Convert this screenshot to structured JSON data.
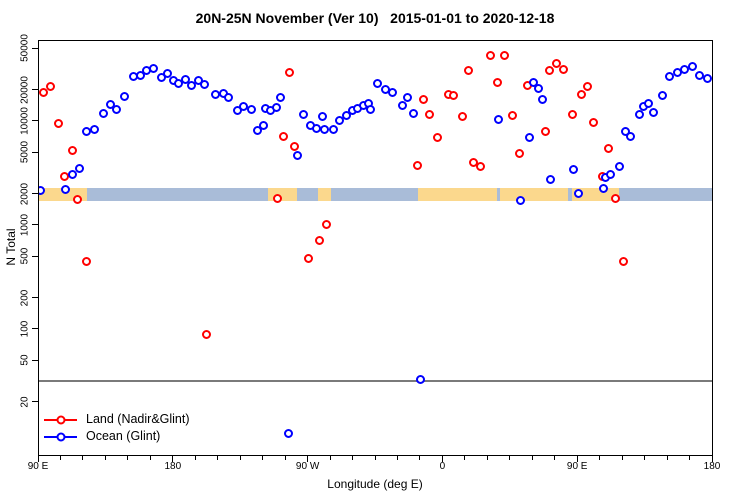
{
  "title": "20N-25N November (Ver 10)   2015-01-01 to 2020-12-18",
  "chart_data": {
    "type": "scatter",
    "title": "20N-25N November (Ver 10)   2015-01-01 to 2020-12-18",
    "xlabel": "Longitude (deg E)",
    "ylabel": "N Total",
    "x_axis": {
      "domain_deg": [
        90,
        540
      ],
      "tick_deg": [
        90,
        180,
        270,
        360,
        450,
        540
      ],
      "tick_labels": [
        "90 E",
        "180",
        "90 W",
        "0",
        "90 E",
        "180"
      ],
      "minor_tick_step_deg": 15
    },
    "y_axis": {
      "scale": "log",
      "ticks": [
        "20",
        "50",
        "100",
        "200",
        "500",
        "1000",
        "2000",
        "5000",
        "10000",
        "20000",
        "50000"
      ],
      "top_tick_value": 50000,
      "legend_position": "bottom-left",
      "grid": false
    },
    "reference_line": {
      "n": 32,
      "color": "#7a7a7a"
    },
    "map_band": {
      "meaning": "land/ocean strip for 20N-25N latitude zone",
      "n_range": [
        1750,
        2300
      ],
      "ocean_color": "#a9bcd8",
      "land_color": "#fbd88d",
      "land_segments_deg": [
        [
          90,
          122
        ],
        [
          243,
          262
        ],
        [
          276,
          285
        ],
        [
          343,
          396
        ],
        [
          398,
          443
        ],
        [
          446,
          477
        ]
      ]
    },
    "series": [
      {
        "id": "land",
        "name": "Land (Nadir&Glint)",
        "color": "#ff0000",
        "points": [
          [
            93.3,
            19300
          ],
          [
            98,
            22000
          ],
          [
            102.7,
            9700
          ],
          [
            106.7,
            3000
          ],
          [
            112.7,
            5300
          ],
          [
            116,
            1810
          ],
          [
            122,
            450
          ],
          [
            202,
            90
          ],
          [
            249.3,
            1850
          ],
          [
            253.3,
            7300
          ],
          [
            257.3,
            30000
          ],
          [
            260.7,
            5800
          ],
          [
            270,
            490
          ],
          [
            277.3,
            730
          ],
          [
            282,
            1040
          ],
          [
            342.7,
            3800
          ],
          [
            346.7,
            16500
          ],
          [
            350.7,
            11900
          ],
          [
            356,
            7100
          ],
          [
            363.3,
            18500
          ],
          [
            366.7,
            18100
          ],
          [
            372.7,
            11300
          ],
          [
            376.7,
            31400
          ],
          [
            380,
            4100
          ],
          [
            384.7,
            3700
          ],
          [
            391.3,
            43800
          ],
          [
            396,
            24100
          ],
          [
            400.7,
            43800
          ],
          [
            406,
            11600
          ],
          [
            410.7,
            5000
          ],
          [
            416,
            22500
          ],
          [
            428,
            8100
          ],
          [
            430.7,
            31400
          ],
          [
            435.3,
            36700
          ],
          [
            440,
            32100
          ],
          [
            446,
            11900
          ],
          [
            452,
            18500
          ],
          [
            456,
            22000
          ],
          [
            460,
            9900
          ],
          [
            466,
            3000
          ],
          [
            470,
            5500
          ],
          [
            474.7,
            1850
          ],
          [
            480,
            450
          ]
        ]
      },
      {
        "id": "ocean",
        "name": "Ocean (Glint)",
        "color": "#0000ff",
        "points": [
          [
            90.7,
            2200
          ],
          [
            108,
            2250
          ],
          [
            112.7,
            3100
          ],
          [
            117.3,
            3600
          ],
          [
            122,
            8100
          ],
          [
            127.3,
            8500
          ],
          [
            133.3,
            12100
          ],
          [
            138,
            14800
          ],
          [
            142,
            13200
          ],
          [
            147.3,
            17700
          ],
          [
            153.3,
            27500
          ],
          [
            158,
            28100
          ],
          [
            162,
            31400
          ],
          [
            166.7,
            32800
          ],
          [
            172,
            26900
          ],
          [
            176,
            29400
          ],
          [
            180,
            25200
          ],
          [
            183.3,
            23500
          ],
          [
            188,
            25700
          ],
          [
            192,
            22500
          ],
          [
            196.7,
            25200
          ],
          [
            200.7,
            23000
          ],
          [
            208,
            18500
          ],
          [
            213.3,
            18900
          ],
          [
            216.7,
            17300
          ],
          [
            222.7,
            13000
          ],
          [
            226.7,
            14200
          ],
          [
            232,
            13200
          ],
          [
            236,
            8300
          ],
          [
            240,
            9300
          ],
          [
            241.3,
            13500
          ],
          [
            244.7,
            13000
          ],
          [
            248.7,
            13800
          ],
          [
            251.3,
            17300
          ],
          [
            256.7,
            10
          ],
          [
            262.7,
            4800
          ],
          [
            266.7,
            11900
          ],
          [
            271.3,
            9300
          ],
          [
            275.3,
            8700
          ],
          [
            279.3,
            11300
          ],
          [
            280.7,
            8500
          ],
          [
            286.7,
            8500
          ],
          [
            290.7,
            10400
          ],
          [
            295.3,
            11600
          ],
          [
            299.3,
            13000
          ],
          [
            302.7,
            13500
          ],
          [
            306.7,
            14500
          ],
          [
            310,
            15100
          ],
          [
            311.3,
            13200
          ],
          [
            316,
            23500
          ],
          [
            321.3,
            20600
          ],
          [
            326,
            19300
          ],
          [
            332.7,
            14500
          ],
          [
            336,
            17300
          ],
          [
            340,
            12100
          ],
          [
            344.7,
            33
          ],
          [
            396.7,
            10600
          ],
          [
            411.3,
            1770
          ],
          [
            417.3,
            7100
          ],
          [
            420,
            24100
          ],
          [
            423.3,
            20900
          ],
          [
            426,
            16500
          ],
          [
            431.3,
            2800
          ],
          [
            446.7,
            3500
          ],
          [
            450,
            2060
          ],
          [
            466.7,
            2300
          ],
          [
            468,
            2900
          ],
          [
            471.3,
            3100
          ],
          [
            477.3,
            3700
          ],
          [
            481.3,
            8100
          ],
          [
            484.7,
            7300
          ],
          [
            490.7,
            11900
          ],
          [
            493.3,
            14200
          ],
          [
            496.7,
            15100
          ],
          [
            500,
            12400
          ],
          [
            506,
            18100
          ],
          [
            510.7,
            27500
          ],
          [
            516,
            30000
          ],
          [
            521.3,
            32100
          ],
          [
            526,
            34300
          ],
          [
            531.3,
            28100
          ],
          [
            536,
            26300
          ]
        ]
      }
    ]
  }
}
